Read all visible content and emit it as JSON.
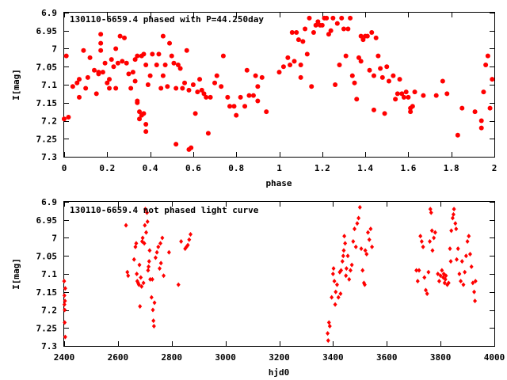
{
  "colors": {
    "marker": "#ff0000",
    "axis": "#000000",
    "background": "#ffffff"
  },
  "chart_data": [
    {
      "type": "scatter",
      "title": "130110-6659.4 phased with P=44.250day",
      "xlabel": "phase",
      "ylabel": "I[mag]",
      "xlim": [
        0,
        2
      ],
      "ylim": [
        7.3,
        6.9
      ],
      "y_inverted": true,
      "grid": false,
      "marker": "filled-circle",
      "x_ticks": [
        "0",
        "0.2",
        "0.4",
        "0.6",
        "0.8",
        "1",
        "1.2",
        "1.4",
        "1.6",
        "1.8",
        "2"
      ],
      "y_ticks": [
        "6.9",
        "6.95",
        "7",
        "7.05",
        "7.1",
        "7.15",
        "7.2",
        "7.25",
        "7.3"
      ],
      "points": [
        [
          0.0,
          7.195
        ],
        [
          0.01,
          7.02
        ],
        [
          0.02,
          7.19
        ],
        [
          0.04,
          7.105
        ],
        [
          0.06,
          7.095
        ],
        [
          0.07,
          7.135
        ],
        [
          0.07,
          7.085
        ],
        [
          0.09,
          7.005
        ],
        [
          0.1,
          7.11
        ],
        [
          0.11,
          7.08
        ],
        [
          0.12,
          7.025
        ],
        [
          0.14,
          7.06
        ],
        [
          0.15,
          7.125
        ],
        [
          0.16,
          7.065
        ],
        [
          0.16,
          7.07
        ],
        [
          0.17,
          6.96
        ],
        [
          0.17,
          6.985
        ],
        [
          0.17,
          7.005
        ],
        [
          0.18,
          7.065
        ],
        [
          0.19,
          7.04
        ],
        [
          0.2,
          7.095
        ],
        [
          0.21,
          7.085
        ],
        [
          0.21,
          7.11
        ],
        [
          0.22,
          7.03
        ],
        [
          0.23,
          7.05
        ],
        [
          0.24,
          7.0
        ],
        [
          0.24,
          7.11
        ],
        [
          0.25,
          7.04
        ],
        [
          0.26,
          6.965
        ],
        [
          0.27,
          7.035
        ],
        [
          0.28,
          6.97
        ],
        [
          0.29,
          7.04
        ],
        [
          0.3,
          7.07
        ],
        [
          0.31,
          7.11
        ],
        [
          0.32,
          7.065
        ],
        [
          0.33,
          7.03
        ],
        [
          0.33,
          7.09
        ],
        [
          0.34,
          7.02
        ],
        [
          0.34,
          7.15
        ],
        [
          0.34,
          7.145
        ],
        [
          0.35,
          7.195
        ],
        [
          0.35,
          7.175
        ],
        [
          0.36,
          7.02
        ],
        [
          0.36,
          7.185
        ],
        [
          0.37,
          7.015
        ],
        [
          0.37,
          7.18
        ],
        [
          0.38,
          7.21
        ],
        [
          0.38,
          7.23
        ],
        [
          0.38,
          7.045
        ],
        [
          0.39,
          7.1
        ],
        [
          0.4,
          7.075
        ],
        [
          0.41,
          7.015
        ],
        [
          0.43,
          7.045
        ],
        [
          0.44,
          7.015
        ],
        [
          0.45,
          7.11
        ],
        [
          0.46,
          7.075
        ],
        [
          0.46,
          6.965
        ],
        [
          0.47,
          7.045
        ],
        [
          0.48,
          7.105
        ],
        [
          0.49,
          6.985
        ],
        [
          0.5,
          7.02
        ],
        [
          0.51,
          7.04
        ],
        [
          0.52,
          7.11
        ],
        [
          0.52,
          7.265
        ],
        [
          0.53,
          7.045
        ],
        [
          0.54,
          7.055
        ],
        [
          0.55,
          7.11
        ],
        [
          0.56,
          7.095
        ],
        [
          0.57,
          7.005
        ],
        [
          0.58,
          7.115
        ],
        [
          0.58,
          7.28
        ],
        [
          0.59,
          7.275
        ],
        [
          0.6,
          7.1
        ],
        [
          0.61,
          7.18
        ],
        [
          0.62,
          7.12
        ],
        [
          0.63,
          7.085
        ],
        [
          0.64,
          7.115
        ],
        [
          0.65,
          7.125
        ],
        [
          0.66,
          7.135
        ],
        [
          0.67,
          7.235
        ],
        [
          0.68,
          7.135
        ],
        [
          0.7,
          7.095
        ],
        [
          0.71,
          7.075
        ],
        [
          0.73,
          7.105
        ],
        [
          0.74,
          7.02
        ],
        [
          0.76,
          7.135
        ],
        [
          0.77,
          7.16
        ],
        [
          0.79,
          7.16
        ],
        [
          0.8,
          7.185
        ],
        [
          0.82,
          7.135
        ],
        [
          0.84,
          7.16
        ],
        [
          0.85,
          7.06
        ],
        [
          0.86,
          7.13
        ],
        [
          0.88,
          7.13
        ],
        [
          0.89,
          7.075
        ],
        [
          0.9,
          7.145
        ],
        [
          0.9,
          7.105
        ],
        [
          0.92,
          7.08
        ],
        [
          0.94,
          7.175
        ],
        [
          1.0,
          7.065
        ],
        [
          1.02,
          7.05
        ],
        [
          1.04,
          7.025
        ],
        [
          1.05,
          7.045
        ],
        [
          1.06,
          6.955
        ],
        [
          1.07,
          7.035
        ],
        [
          1.08,
          6.955
        ],
        [
          1.09,
          6.975
        ],
        [
          1.1,
          7.045
        ],
        [
          1.1,
          7.08
        ],
        [
          1.11,
          6.98
        ],
        [
          1.12,
          6.945
        ],
        [
          1.13,
          7.015
        ],
        [
          1.14,
          6.915
        ],
        [
          1.15,
          7.105
        ],
        [
          1.16,
          6.955
        ],
        [
          1.17,
          6.935
        ],
        [
          1.18,
          6.925
        ],
        [
          1.19,
          6.935
        ],
        [
          1.2,
          6.935
        ],
        [
          1.21,
          6.915
        ],
        [
          1.22,
          6.915
        ],
        [
          1.23,
          6.96
        ],
        [
          1.24,
          6.95
        ],
        [
          1.25,
          6.915
        ],
        [
          1.26,
          7.1
        ],
        [
          1.27,
          6.93
        ],
        [
          1.28,
          7.045
        ],
        [
          1.29,
          6.915
        ],
        [
          1.3,
          6.945
        ],
        [
          1.31,
          7.02
        ],
        [
          1.32,
          6.945
        ],
        [
          1.33,
          6.915
        ],
        [
          1.34,
          7.075
        ],
        [
          1.35,
          7.095
        ],
        [
          1.36,
          7.14
        ],
        [
          1.37,
          7.025
        ],
        [
          1.38,
          7.035
        ],
        [
          1.38,
          6.965
        ],
        [
          1.39,
          6.975
        ],
        [
          1.4,
          6.965
        ],
        [
          1.41,
          6.965
        ],
        [
          1.42,
          7.06
        ],
        [
          1.43,
          6.955
        ],
        [
          1.44,
          7.075
        ],
        [
          1.44,
          7.17
        ],
        [
          1.45,
          6.97
        ],
        [
          1.46,
          7.02
        ],
        [
          1.47,
          7.055
        ],
        [
          1.48,
          7.08
        ],
        [
          1.49,
          7.18
        ],
        [
          1.5,
          7.05
        ],
        [
          1.51,
          7.09
        ],
        [
          1.53,
          7.075
        ],
        [
          1.54,
          7.14
        ],
        [
          1.55,
          7.125
        ],
        [
          1.56,
          7.085
        ],
        [
          1.57,
          7.125
        ],
        [
          1.58,
          7.135
        ],
        [
          1.59,
          7.12
        ],
        [
          1.6,
          7.135
        ],
        [
          1.61,
          7.165
        ],
        [
          1.61,
          7.175
        ],
        [
          1.62,
          7.16
        ],
        [
          1.63,
          7.12
        ],
        [
          1.67,
          7.13
        ],
        [
          1.73,
          7.13
        ],
        [
          1.76,
          7.09
        ],
        [
          1.78,
          7.125
        ],
        [
          1.83,
          7.24
        ],
        [
          1.85,
          7.165
        ],
        [
          1.91,
          7.175
        ],
        [
          1.94,
          7.22
        ],
        [
          1.94,
          7.2
        ],
        [
          1.95,
          7.12
        ],
        [
          1.96,
          7.045
        ],
        [
          1.97,
          7.02
        ],
        [
          1.98,
          7.165
        ],
        [
          1.99,
          7.085
        ]
      ]
    },
    {
      "type": "scatter",
      "title": "130110-6659.4 not phased light curve",
      "xlabel": "hjd0",
      "ylabel": "I[mag]",
      "xlim": [
        2400,
        4000
      ],
      "ylim": [
        7.3,
        6.9
      ],
      "y_inverted": true,
      "grid": false,
      "marker": "filled-diamond",
      "x_ticks": [
        "2400",
        "2600",
        "2800",
        "3000",
        "3200",
        "3400",
        "3600",
        "3800",
        "4000"
      ],
      "y_ticks": [
        "6.9",
        "6.95",
        "7",
        "7.05",
        "7.1",
        "7.15",
        "7.2",
        "7.25",
        "7.3"
      ],
      "points": [
        [
          2400,
          7.12
        ],
        [
          2401,
          7.16
        ],
        [
          2401,
          7.185
        ],
        [
          2402,
          7.2
        ],
        [
          2402,
          7.235
        ],
        [
          2403,
          7.175
        ],
        [
          2404,
          7.275
        ],
        [
          2404,
          7.14
        ],
        [
          2630,
          6.965
        ],
        [
          2635,
          7.095
        ],
        [
          2638,
          7.105
        ],
        [
          2660,
          7.06
        ],
        [
          2665,
          7.025
        ],
        [
          2668,
          7.015
        ],
        [
          2670,
          7.1
        ],
        [
          2672,
          7.12
        ],
        [
          2675,
          7.125
        ],
        [
          2678,
          7.13
        ],
        [
          2680,
          7.075
        ],
        [
          2682,
          7.19
        ],
        [
          2685,
          7.11
        ],
        [
          2688,
          7.135
        ],
        [
          2690,
          7.01
        ],
        [
          2692,
          7.0
        ],
        [
          2695,
          7.125
        ],
        [
          2698,
          7.015
        ],
        [
          2700,
          6.965
        ],
        [
          2702,
          6.92
        ],
        [
          2705,
          6.985
        ],
        [
          2708,
          6.93
        ],
        [
          2710,
          6.955
        ],
        [
          2712,
          7.09
        ],
        [
          2714,
          7.08
        ],
        [
          2716,
          7.065
        ],
        [
          2718,
          7.035
        ],
        [
          2720,
          7.115
        ],
        [
          2725,
          7.165
        ],
        [
          2728,
          7.115
        ],
        [
          2730,
          7.2
        ],
        [
          2732,
          7.23
        ],
        [
          2734,
          7.245
        ],
        [
          2736,
          7.18
        ],
        [
          2740,
          7.055
        ],
        [
          2745,
          7.04
        ],
        [
          2750,
          7.025
        ],
        [
          2755,
          7.085
        ],
        [
          2758,
          7.015
        ],
        [
          2760,
          7.07
        ],
        [
          2765,
          7.0
        ],
        [
          2770,
          7.105
        ],
        [
          2790,
          7.04
        ],
        [
          2825,
          7.13
        ],
        [
          2835,
          7.01
        ],
        [
          2850,
          7.03
        ],
        [
          2855,
          7.025
        ],
        [
          2860,
          7.02
        ],
        [
          2865,
          7.005
        ],
        [
          2870,
          6.99
        ],
        [
          3380,
          7.265
        ],
        [
          3382,
          7.285
        ],
        [
          3385,
          7.235
        ],
        [
          3388,
          7.245
        ],
        [
          3395,
          7.165
        ],
        [
          3400,
          7.1
        ],
        [
          3402,
          7.085
        ],
        [
          3405,
          7.12
        ],
        [
          3408,
          7.185
        ],
        [
          3410,
          7.15
        ],
        [
          3415,
          7.13
        ],
        [
          3420,
          7.165
        ],
        [
          3425,
          7.095
        ],
        [
          3428,
          7.155
        ],
        [
          3430,
          7.09
        ],
        [
          3435,
          7.065
        ],
        [
          3438,
          7.05
        ],
        [
          3440,
          7.035
        ],
        [
          3442,
          6.995
        ],
        [
          3445,
          7.015
        ],
        [
          3448,
          7.105
        ],
        [
          3450,
          7.085
        ],
        [
          3455,
          7.05
        ],
        [
          3460,
          7.115
        ],
        [
          3465,
          7.09
        ],
        [
          3470,
          7.075
        ],
        [
          3475,
          7.01
        ],
        [
          3480,
          6.975
        ],
        [
          3485,
          7.025
        ],
        [
          3490,
          6.96
        ],
        [
          3495,
          6.945
        ],
        [
          3500,
          6.915
        ],
        [
          3505,
          7.03
        ],
        [
          3510,
          7.09
        ],
        [
          3515,
          7.125
        ],
        [
          3518,
          7.13
        ],
        [
          3520,
          7.035
        ],
        [
          3525,
          7.045
        ],
        [
          3530,
          6.985
        ],
        [
          3535,
          7.005
        ],
        [
          3540,
          6.975
        ],
        [
          3545,
          7.025
        ],
        [
          3710,
          7.09
        ],
        [
          3715,
          7.12
        ],
        [
          3720,
          7.09
        ],
        [
          3725,
          6.995
        ],
        [
          3730,
          7.01
        ],
        [
          3735,
          7.025
        ],
        [
          3740,
          7.11
        ],
        [
          3745,
          7.145
        ],
        [
          3750,
          7.155
        ],
        [
          3755,
          7.095
        ],
        [
          3760,
          7.01
        ],
        [
          3762,
          6.92
        ],
        [
          3765,
          6.93
        ],
        [
          3768,
          6.98
        ],
        [
          3770,
          7.035
        ],
        [
          3775,
          7.0
        ],
        [
          3780,
          6.985
        ],
        [
          3790,
          7.1
        ],
        [
          3795,
          7.12
        ],
        [
          3800,
          7.105
        ],
        [
          3805,
          7.09
        ],
        [
          3810,
          7.11
        ],
        [
          3812,
          7.1
        ],
        [
          3815,
          7.125
        ],
        [
          3818,
          7.115
        ],
        [
          3820,
          7.105
        ],
        [
          3825,
          7.13
        ],
        [
          3830,
          7.125
        ],
        [
          3835,
          7.03
        ],
        [
          3838,
          7.065
        ],
        [
          3840,
          6.98
        ],
        [
          3845,
          6.945
        ],
        [
          3848,
          6.935
        ],
        [
          3850,
          6.92
        ],
        [
          3855,
          6.96
        ],
        [
          3858,
          6.975
        ],
        [
          3860,
          7.06
        ],
        [
          3865,
          7.03
        ],
        [
          3870,
          7.1
        ],
        [
          3875,
          7.12
        ],
        [
          3880,
          7.065
        ],
        [
          3885,
          7.13
        ],
        [
          3890,
          7.095
        ],
        [
          3895,
          7.05
        ],
        [
          3900,
          7.01
        ],
        [
          3905,
          6.995
        ],
        [
          3910,
          7.045
        ],
        [
          3915,
          7.08
        ],
        [
          3920,
          7.125
        ],
        [
          3925,
          7.15
        ],
        [
          3928,
          7.175
        ],
        [
          3930,
          7.12
        ]
      ]
    }
  ]
}
